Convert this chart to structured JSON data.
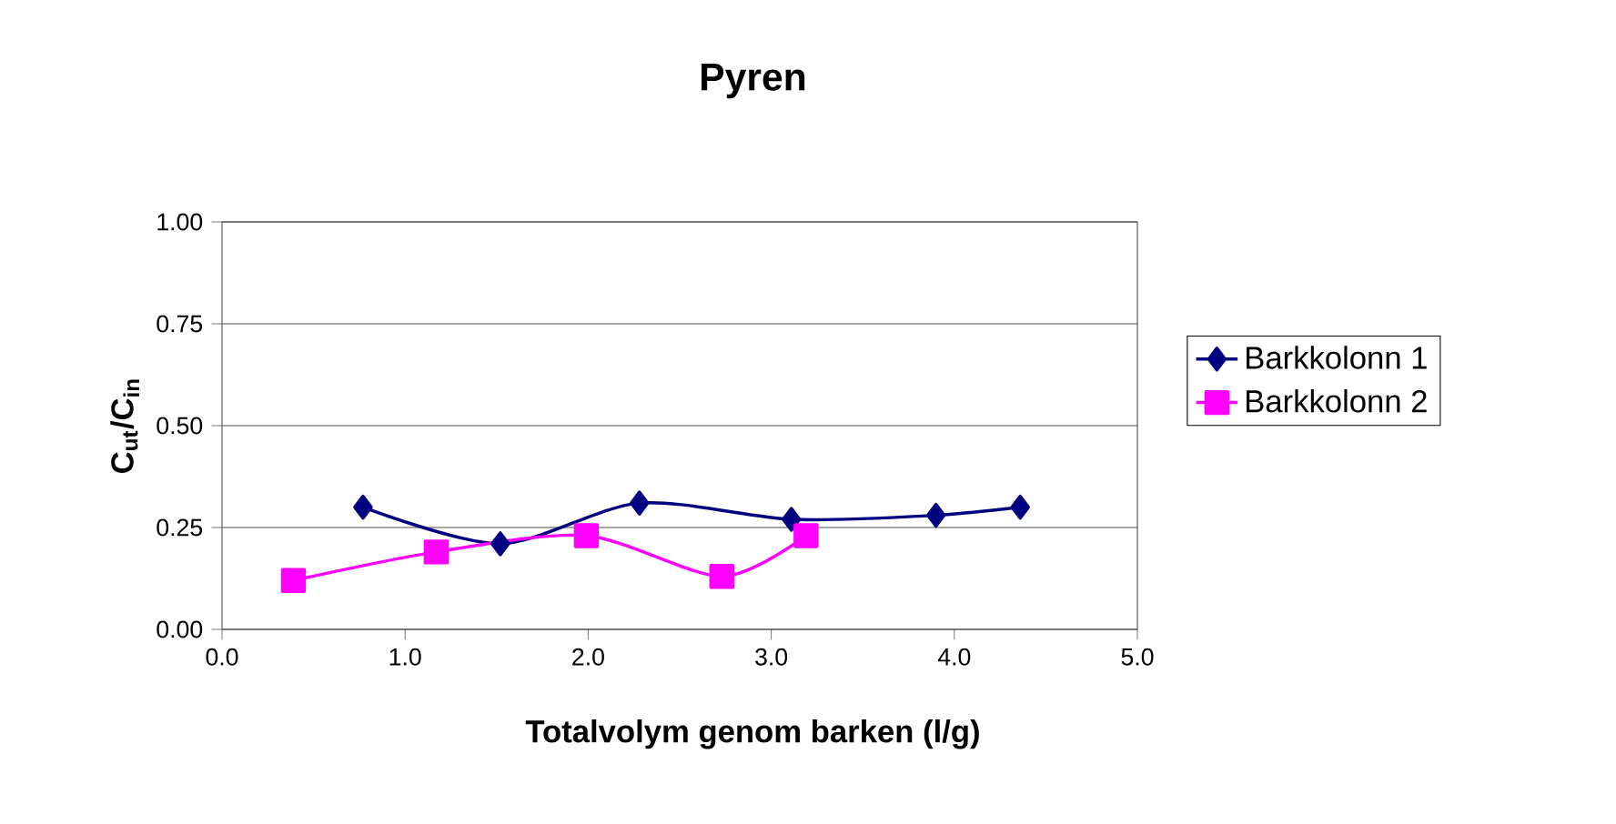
{
  "chart_data": {
    "type": "line",
    "title": "Pyren",
    "xlabel": "Totalvolym genom barken (l/g)",
    "ylabel": "C$_{ut}$/C$_{in}$",
    "xlim": [
      0,
      5
    ],
    "ylim": [
      0,
      1
    ],
    "xticks": [
      {
        "value": 0,
        "label": "0.0"
      },
      {
        "value": 1,
        "label": "1.0"
      },
      {
        "value": 2,
        "label": "2.0"
      },
      {
        "value": 3,
        "label": "3.0"
      },
      {
        "value": 4,
        "label": "4.0"
      },
      {
        "value": 5,
        "label": "5.0"
      }
    ],
    "yticks": [
      {
        "value": 0,
        "label": "0.00"
      },
      {
        "value": 0.25,
        "label": "0.25"
      },
      {
        "value": 0.5,
        "label": "0.50"
      },
      {
        "value": 0.75,
        "label": "0.75"
      },
      {
        "value": 1,
        "label": "1.00"
      }
    ],
    "grid": "y",
    "legend": "right",
    "series": [
      {
        "name": "Barkkolonn 1",
        "color": "#000080",
        "marker": "diamond",
        "x": [
          0.77,
          1.52,
          2.28,
          3.11,
          3.9,
          4.36
        ],
        "values": [
          0.3,
          0.21,
          0.31,
          0.27,
          0.28,
          0.3
        ]
      },
      {
        "name": "Barkkolonn 2",
        "color": "#ff00ff",
        "marker": "square",
        "x": [
          0.39,
          1.17,
          1.99,
          2.73,
          3.19
        ],
        "values": [
          0.12,
          0.19,
          0.23,
          0.13,
          0.23
        ]
      }
    ]
  }
}
